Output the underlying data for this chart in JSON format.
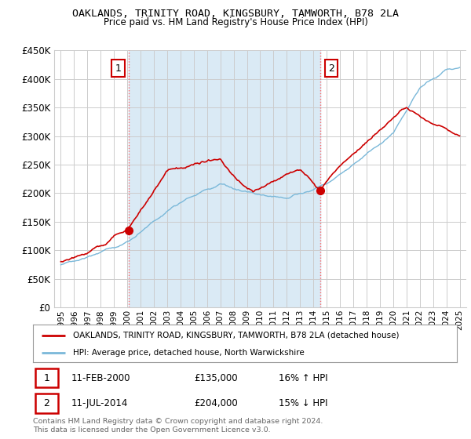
{
  "title": "OAKLANDS, TRINITY ROAD, KINGSBURY, TAMWORTH, B78 2LA",
  "subtitle": "Price paid vs. HM Land Registry's House Price Index (HPI)",
  "ylim": [
    0,
    450000
  ],
  "yticks": [
    0,
    50000,
    100000,
    150000,
    200000,
    250000,
    300000,
    350000,
    400000,
    450000
  ],
  "ytick_labels": [
    "£0",
    "£50K",
    "£100K",
    "£150K",
    "£200K",
    "£250K",
    "£300K",
    "£350K",
    "£400K",
    "£450K"
  ],
  "xlim_start": 1994.5,
  "xlim_end": 2025.5,
  "xtick_years": [
    1995,
    1996,
    1997,
    1998,
    1999,
    2000,
    2001,
    2002,
    2003,
    2004,
    2005,
    2006,
    2007,
    2008,
    2009,
    2010,
    2011,
    2012,
    2013,
    2014,
    2015,
    2016,
    2017,
    2018,
    2019,
    2020,
    2021,
    2022,
    2023,
    2024,
    2025
  ],
  "sale1_x": 2000.12,
  "sale1_y": 135000,
  "sale1_label": "1",
  "sale2_x": 2014.54,
  "sale2_y": 204000,
  "sale2_label": "2",
  "hpi_color": "#7ab8d9",
  "price_color": "#cc0000",
  "vline_color": "#ff6666",
  "shade_color": "#daeaf5",
  "background_color": "#ffffff",
  "grid_color": "#cccccc",
  "legend_label_price": "OAKLANDS, TRINITY ROAD, KINGSBURY, TAMWORTH, B78 2LA (detached house)",
  "legend_label_hpi": "HPI: Average price, detached house, North Warwickshire",
  "table_row1": [
    "1",
    "11-FEB-2000",
    "£135,000",
    "16% ↑ HPI"
  ],
  "table_row2": [
    "2",
    "11-JUL-2014",
    "£204,000",
    "15% ↓ HPI"
  ],
  "footnote": "Contains HM Land Registry data © Crown copyright and database right 2024.\nThis data is licensed under the Open Government Licence v3.0."
}
